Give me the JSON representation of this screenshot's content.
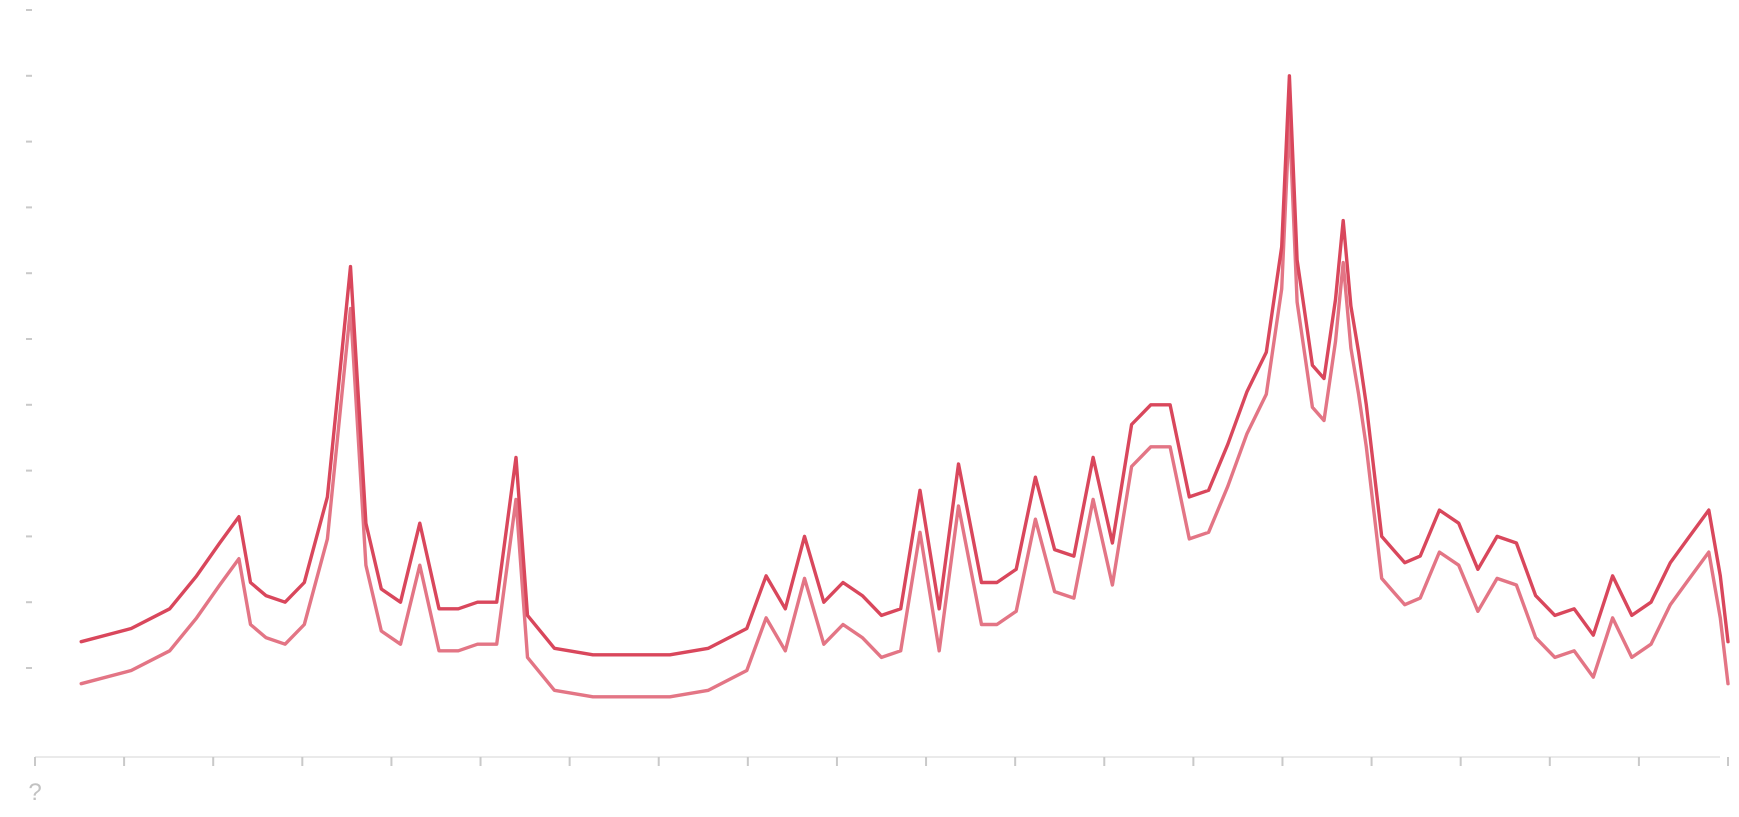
{
  "chart_data": {
    "type": "line",
    "title": "",
    "xlabel": "",
    "ylabel": "",
    "grid": false,
    "legend": "none",
    "xlim": [
      2,
      46
    ],
    "ylim": [
      0,
      100
    ],
    "x_tick_labels": [
      "?",
      "",
      "",
      "",
      "",
      "",
      "",
      "",
      "",
      "",
      "",
      "",
      "",
      "",
      "",
      "",
      "",
      "",
      "",
      ""
    ],
    "colors": {
      "trace": "#d9475c",
      "axis": "#d4d4d4",
      "tick_label": "#c2c2c2"
    },
    "series": [
      {
        "x": [
          3.2,
          4.5,
          5.5,
          6.2,
          6.8,
          7.3,
          7.6,
          8.0,
          8.5,
          9.0,
          9.6,
          10.2,
          10.6,
          11.0,
          11.5,
          12.0,
          12.5,
          13.0,
          13.5,
          14.0,
          14.5,
          14.8,
          15.5,
          16.5,
          17.5,
          18.5,
          19.5,
          20.5,
          21.0,
          21.5,
          22.0,
          22.5,
          23.0,
          23.5,
          24.0,
          24.5,
          25.0,
          25.5,
          26.0,
          26.6,
          27.0,
          27.5,
          28.0,
          28.5,
          29.0,
          29.5,
          30.0,
          30.5,
          31.0,
          31.5,
          32.0,
          32.5,
          33.0,
          33.5,
          34.0,
          34.4,
          34.6,
          34.8,
          35.0,
          35.2,
          35.5,
          35.8,
          36.0,
          36.2,
          36.4,
          36.6,
          36.8,
          37.0,
          37.3,
          37.6,
          38.0,
          38.5,
          39.0,
          39.5,
          40.0,
          40.5,
          41.0,
          41.5,
          42.0,
          42.5,
          43.0,
          43.5,
          44.0,
          44.5,
          45.0,
          45.5,
          45.8,
          46.0
        ],
        "y": [
          4,
          6,
          9,
          14,
          19,
          23,
          13,
          11,
          10,
          13,
          26,
          61,
          22,
          12,
          10,
          22,
          9,
          9,
          10,
          10,
          32,
          8,
          3,
          2,
          2,
          2,
          3,
          6,
          14,
          9,
          20,
          10,
          13,
          11,
          8,
          9,
          27,
          9,
          31,
          13,
          13,
          15,
          29,
          18,
          17,
          32,
          19,
          37,
          40,
          40,
          26,
          27,
          34,
          42,
          48,
          64,
          90,
          62,
          54,
          46,
          44,
          56,
          68,
          55,
          48,
          40,
          30,
          20,
          18,
          16,
          17,
          24,
          22,
          15,
          20,
          19,
          11,
          8,
          9,
          5,
          14,
          8,
          10,
          16,
          20,
          24,
          14,
          4
        ]
      }
    ]
  }
}
